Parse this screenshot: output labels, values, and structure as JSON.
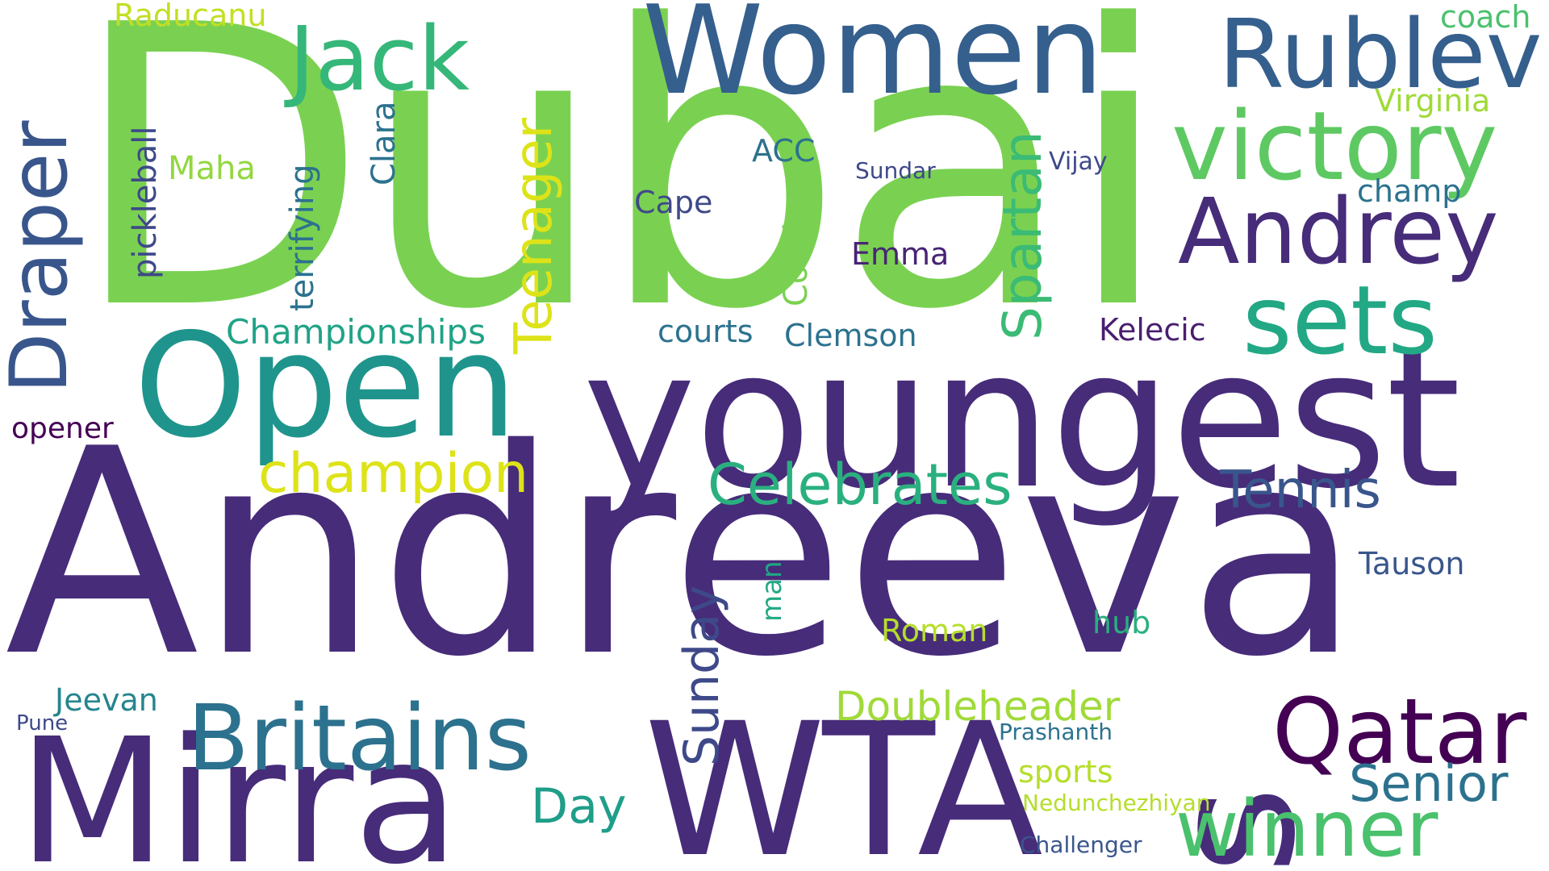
{
  "words": [
    {
      "text": "Andreeva",
      "color": "#472c7a",
      "vertical": false
    },
    {
      "text": "Dubai",
      "color": "#7ad151",
      "vertical": false
    },
    {
      "text": "youngest",
      "color": "#472c7a",
      "vertical": false
    },
    {
      "text": "WTA",
      "color": "#472c7a",
      "vertical": false
    },
    {
      "text": "Mirra",
      "color": "#472c7a",
      "vertical": false
    },
    {
      "text": "s",
      "color": "#472c7a",
      "vertical": true
    },
    {
      "text": "Open",
      "color": "#1f948c",
      "vertical": false
    },
    {
      "text": "Women",
      "color": "#355f8d",
      "vertical": false
    },
    {
      "text": "Rublev",
      "color": "#355f8d",
      "vertical": false
    },
    {
      "text": "victory",
      "color": "#5ec962",
      "vertical": false
    },
    {
      "text": "Andrey",
      "color": "#472c7a",
      "vertical": false
    },
    {
      "text": "Jack",
      "color": "#35b779",
      "vertical": false
    },
    {
      "text": "Draper",
      "color": "#39568c",
      "vertical": true
    },
    {
      "text": "sets",
      "color": "#22a884",
      "vertical": false
    },
    {
      "text": "Britains",
      "color": "#2c728e",
      "vertical": false
    },
    {
      "text": "Qatar",
      "color": "#440154",
      "vertical": false
    },
    {
      "text": "winner",
      "color": "#4ac16d",
      "vertical": false
    },
    {
      "text": "Celebrates",
      "color": "#2ab07f",
      "vertical": false
    },
    {
      "text": "champion",
      "color": "#dde318",
      "vertical": false
    },
    {
      "text": "Tennis",
      "color": "#39568c",
      "vertical": false
    },
    {
      "text": "Senior",
      "color": "#2c728e",
      "vertical": false
    },
    {
      "text": "Teenager",
      "color": "#dde318",
      "vertical": true
    },
    {
      "text": "Spartan",
      "color": "#3bbb75",
      "vertical": true
    },
    {
      "text": "Sunday",
      "color": "#3e4989",
      "vertical": true
    },
    {
      "text": "Day",
      "color": "#1f9e89",
      "vertical": false
    },
    {
      "text": "Doubleheader",
      "color": "#a0da39",
      "vertical": false
    },
    {
      "text": "Championships",
      "color": "#20a386",
      "vertical": false
    },
    {
      "text": "Raducanu",
      "color": "#c2df23",
      "vertical": false
    },
    {
      "text": "coach",
      "color": "#4ac16d",
      "vertical": false
    },
    {
      "text": "Virginia",
      "color": "#a0da39",
      "vertical": false
    },
    {
      "text": "champ",
      "color": "#2c728e",
      "vertical": false
    },
    {
      "text": "pickleball",
      "color": "#3e4989",
      "vertical": true
    },
    {
      "text": "Maha",
      "color": "#93d741",
      "vertical": false
    },
    {
      "text": "terrifying",
      "color": "#2c728e",
      "vertical": true
    },
    {
      "text": "Clara",
      "color": "#2c728e",
      "vertical": true
    },
    {
      "text": "ACC",
      "color": "#2c728e",
      "vertical": false
    },
    {
      "text": "Cape",
      "color": "#3e4989",
      "vertical": false
    },
    {
      "text": "Sundar",
      "color": "#3e4989",
      "vertical": false
    },
    {
      "text": "Vijay",
      "color": "#3e4989",
      "vertical": false
    },
    {
      "text": "Coral",
      "color": "#7ad151",
      "vertical": true
    },
    {
      "text": "Emma",
      "color": "#482475",
      "vertical": false
    },
    {
      "text": "courts",
      "color": "#2c728e",
      "vertical": false
    },
    {
      "text": "Clemson",
      "color": "#2c728e",
      "vertical": false
    },
    {
      "text": "Kelecic",
      "color": "#481f70",
      "vertical": false
    },
    {
      "text": "opener",
      "color": "#440154",
      "vertical": false
    },
    {
      "text": "man",
      "color": "#22a884",
      "vertical": true
    },
    {
      "text": "Roman",
      "color": "#b5de2b",
      "vertical": false
    },
    {
      "text": "hub",
      "color": "#2ab07f",
      "vertical": false
    },
    {
      "text": "Tauson",
      "color": "#39568c",
      "vertical": false
    },
    {
      "text": "Jeevan",
      "color": "#25858e",
      "vertical": false
    },
    {
      "text": "Pune",
      "color": "#3e4989",
      "vertical": false
    },
    {
      "text": "Prashanth",
      "color": "#2c728e",
      "vertical": false
    },
    {
      "text": "sports",
      "color": "#b5de2b",
      "vertical": false
    },
    {
      "text": "Nedunchezhiyan",
      "color": "#b5de2b",
      "vertical": false
    },
    {
      "text": "Challenger",
      "color": "#39568c",
      "vertical": false
    }
  ]
}
